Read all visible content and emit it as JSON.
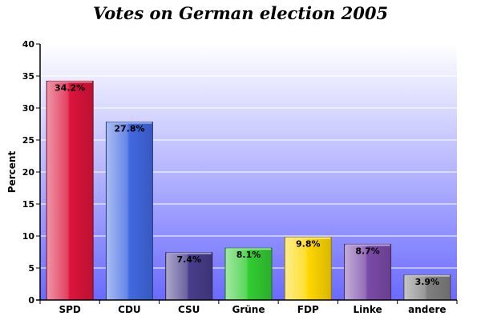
{
  "chart_data": {
    "type": "bar",
    "title": "Votes on German election 2005",
    "xlabel": "",
    "ylabel": "Percent",
    "ylim": [
      0,
      40
    ],
    "yticks": [
      0,
      5,
      10,
      15,
      20,
      25,
      30,
      35,
      40
    ],
    "grid": true,
    "categories": [
      "SPD",
      "CDU",
      "CSU",
      "Grüne",
      "FDP",
      "Linke",
      "andere"
    ],
    "values": [
      34.2,
      27.8,
      7.4,
      8.1,
      9.8,
      8.7,
      3.9
    ],
    "data_labels": [
      "34.2%",
      "27.8%",
      "7.4%",
      "8.1%",
      "9.8%",
      "8.7%",
      "3.9%"
    ],
    "colors": [
      "#dc143c",
      "#4169e1",
      "#483d8b",
      "#32cd32",
      "#ffd700",
      "#7b4aa8",
      "#808080"
    ]
  }
}
